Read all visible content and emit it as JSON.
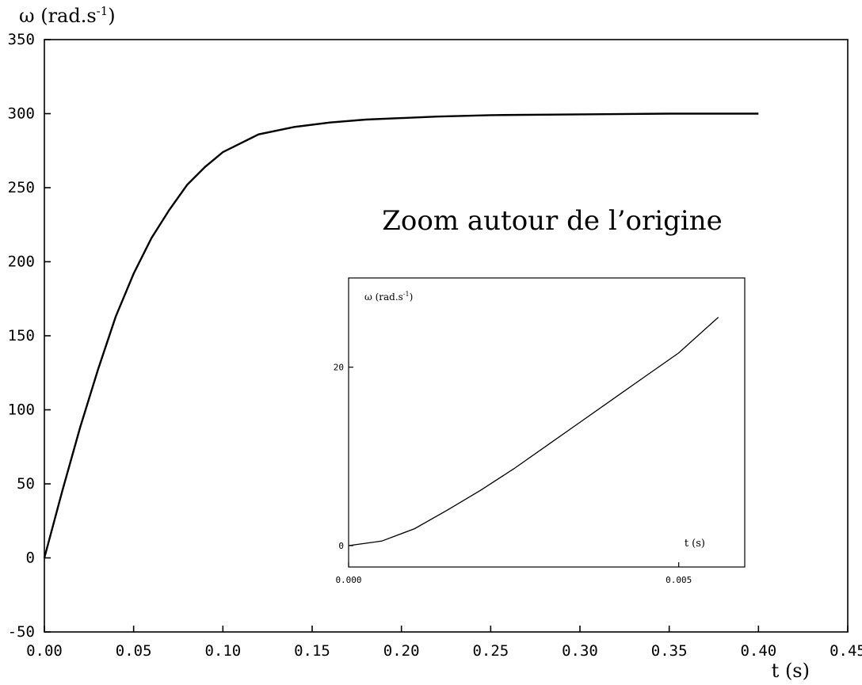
{
  "chart_data": [
    {
      "type": "line",
      "ylabel": "ω (rad.s",
      "ylabel_sup": "-1",
      "ylabel_close": ")",
      "xlabel": "t (s)",
      "xlim": [
        0.0,
        0.45
      ],
      "ylim": [
        -50,
        350
      ],
      "xticks": [
        "0.00",
        "0.05",
        "0.10",
        "0.15",
        "0.20",
        "0.25",
        "0.30",
        "0.35",
        "0.40",
        "0.45"
      ],
      "xtick_values": [
        0.0,
        0.05,
        0.1,
        0.15,
        0.2,
        0.25,
        0.3,
        0.35,
        0.4,
        0.45
      ],
      "yticks": [
        "350",
        "300",
        "250",
        "200",
        "150",
        "100",
        "50",
        "0",
        "-50"
      ],
      "ytick_values": [
        350,
        300,
        250,
        200,
        150,
        100,
        50,
        0,
        -50
      ],
      "grid": false,
      "series": [
        {
          "x": [
            0.0,
            0.01,
            0.02,
            0.03,
            0.04,
            0.05,
            0.06,
            0.07,
            0.08,
            0.09,
            0.1,
            0.12,
            0.14,
            0.16,
            0.18,
            0.2,
            0.22,
            0.25,
            0.3,
            0.35,
            0.4
          ],
          "y": [
            0,
            45,
            88,
            127,
            163,
            192,
            216,
            235,
            252,
            264,
            274,
            286,
            291,
            294,
            296,
            297,
            298,
            299,
            299.5,
            300,
            300
          ]
        }
      ]
    },
    {
      "type": "line",
      "title": "Zoom autour de l’origine",
      "ylabel": "ω (rad.s",
      "ylabel_sup": "-1",
      "ylabel_close": ")",
      "xlabel": "t (s)",
      "xlim": [
        0.0,
        0.006
      ],
      "ylim": [
        -2.4,
        30
      ],
      "xticks": [
        "0.000",
        "0.005"
      ],
      "xtick_values": [
        0.0,
        0.005
      ],
      "yticks": [
        "0",
        "20"
      ],
      "ytick_values": [
        0,
        20
      ],
      "grid": false,
      "series": [
        {
          "x": [
            0.0,
            0.0005,
            0.001,
            0.0015,
            0.002,
            0.0025,
            0.003,
            0.0035,
            0.004,
            0.0045,
            0.005,
            0.0056
          ],
          "y": [
            0,
            0.5,
            1.9,
            4.0,
            6.2,
            8.6,
            11.2,
            13.8,
            16.4,
            19.0,
            21.6,
            25.6
          ]
        }
      ]
    }
  ]
}
